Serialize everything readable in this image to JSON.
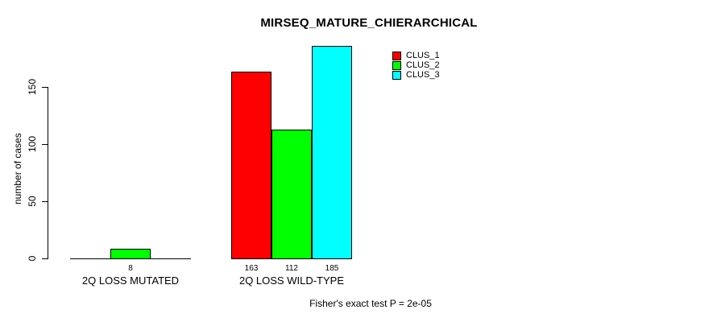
{
  "title": "MIRSEQ_MATURE_CHIERARCHICAL",
  "footnote": "Fisher's exact test P = 2e-05",
  "y_axis": {
    "label": "number of cases",
    "ticks": [
      0,
      50,
      100,
      150
    ]
  },
  "legend": {
    "items": [
      {
        "label": "CLUS_1",
        "color": "#ff0000"
      },
      {
        "label": "CLUS_2",
        "color": "#00ff00"
      },
      {
        "label": "CLUS_3",
        "color": "#00ffff"
      }
    ]
  },
  "chart_data": {
    "type": "bar",
    "title": "MIRSEQ_MATURE_CHIERARCHICAL",
    "xlabel": "",
    "ylabel": "number of cases",
    "ylim": [
      0,
      150
    ],
    "yticks": [
      0,
      50,
      100,
      150
    ],
    "grid": false,
    "legend_position": "top-right",
    "categories": [
      "2Q LOSS MUTATED",
      "2Q LOSS WILD-TYPE"
    ],
    "series": [
      {
        "name": "CLUS_1",
        "color": "#ff0000",
        "values": [
          0,
          163
        ]
      },
      {
        "name": "CLUS_2",
        "color": "#00ff00",
        "values": [
          8,
          112
        ]
      },
      {
        "name": "CLUS_3",
        "color": "#00ffff",
        "values": [
          0,
          185
        ]
      }
    ],
    "bar_labels": [
      [
        "",
        "8",
        ""
      ],
      [
        "163",
        "112",
        "185"
      ]
    ],
    "annotation": "Fisher's exact test P = 2e-05"
  }
}
